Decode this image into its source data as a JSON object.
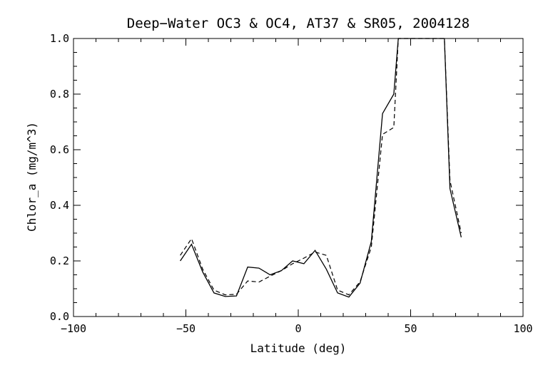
{
  "chart_data": {
    "type": "line",
    "title": "Deep−Water OC3 & OC4, AT37 & SR05, 2004128",
    "xlabel": "Latitude (deg)",
    "ylabel": "Chlor_a (mg/m^3)",
    "xlim": [
      -100,
      100
    ],
    "ylim": [
      0,
      1.0
    ],
    "x_ticks": [
      -100,
      -50,
      0,
      50,
      100
    ],
    "x_tick_labels": [
      "−100",
      "−50",
      "0",
      "50",
      "100"
    ],
    "y_ticks": [
      0.0,
      0.2,
      0.4,
      0.6,
      0.8,
      1.0
    ],
    "y_tick_labels": [
      "0.0",
      "0.2",
      "0.4",
      "0.6",
      "0.8",
      "1.0"
    ],
    "x_minor_step": 10,
    "y_minor_step": 0.05,
    "grid": false,
    "legend": "none",
    "series": [
      {
        "style": "solid",
        "x": [
          -52.5,
          -47.5,
          -42.5,
          -37.5,
          -32.5,
          -27.5,
          -22.5,
          -17.5,
          -12.5,
          -7.5,
          -2.5,
          2.5,
          7.5,
          12.5,
          17.5,
          22.5,
          27.5,
          32.5,
          37.5,
          42.5,
          44.5,
          65.0,
          67.5,
          72.5
        ],
        "y": [
          0.2,
          0.26,
          0.16,
          0.085,
          0.072,
          0.074,
          0.178,
          0.174,
          0.15,
          0.165,
          0.2,
          0.19,
          0.238,
          0.17,
          0.085,
          0.07,
          0.12,
          0.27,
          0.73,
          0.8,
          1.0,
          1.0,
          0.46,
          0.285
        ]
      },
      {
        "style": "dashed",
        "x": [
          -52.5,
          -47.5,
          -42.5,
          -37.5,
          -32.5,
          -27.5,
          -22.5,
          -17.5,
          -12.5,
          -7.5,
          -2.5,
          2.5,
          7.5,
          12.5,
          17.5,
          22.5,
          27.5,
          32.5,
          37.5,
          42.5,
          44.5,
          65.0,
          67.5,
          72.5
        ],
        "y": [
          0.22,
          0.28,
          0.17,
          0.095,
          0.078,
          0.08,
          0.128,
          0.124,
          0.145,
          0.165,
          0.19,
          0.21,
          0.232,
          0.22,
          0.095,
          0.078,
          0.125,
          0.25,
          0.655,
          0.68,
          1.0,
          1.0,
          0.49,
          0.3
        ]
      }
    ]
  }
}
